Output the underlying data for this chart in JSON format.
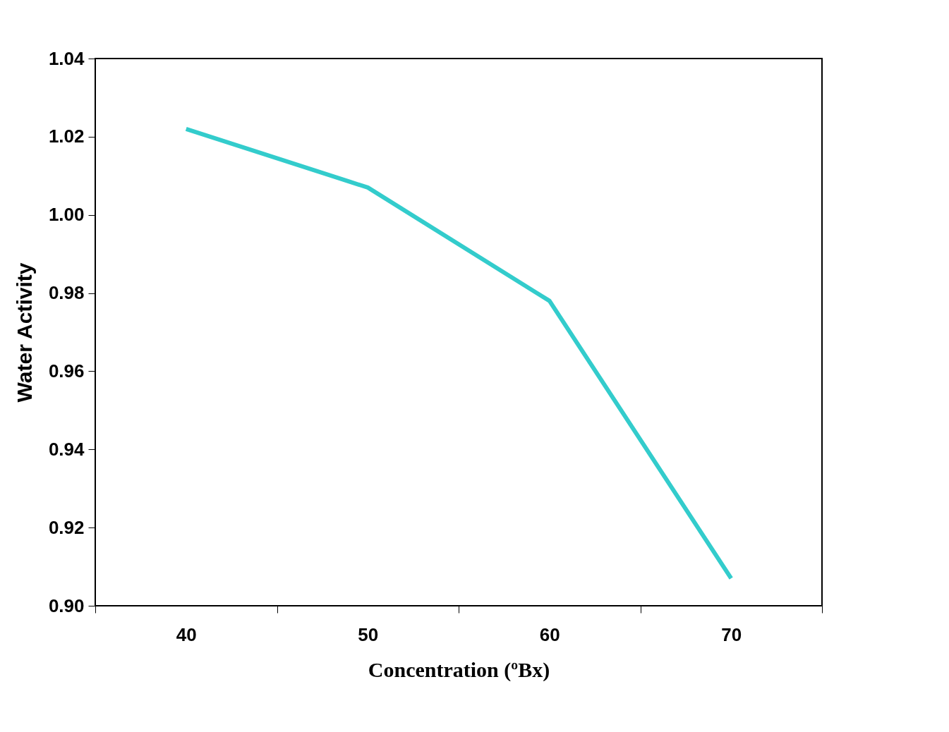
{
  "chart_data": {
    "type": "line",
    "xlabel": "Concentration (ºBx)",
    "ylabel": "Water Activity",
    "categories": [
      "40",
      "50",
      "60",
      "70"
    ],
    "series": [
      {
        "color": "#33cccc",
        "values": [
          1.022,
          1.007,
          0.978,
          0.907
        ]
      }
    ],
    "ylim": [
      0.9,
      1.04
    ],
    "yticks": [
      {
        "value": 0.9,
        "label": "0.90"
      },
      {
        "value": 0.92,
        "label": "0.92"
      },
      {
        "value": 0.94,
        "label": "0.94"
      },
      {
        "value": 0.96,
        "label": "0.96"
      },
      {
        "value": 0.98,
        "label": "0.98"
      },
      {
        "value": 1.0,
        "label": "1.00"
      },
      {
        "value": 1.02,
        "label": "1.02"
      },
      {
        "value": 1.04,
        "label": "1.04"
      }
    ],
    "grid": false,
    "legend": false,
    "marker": "none",
    "line_style": "solid"
  }
}
